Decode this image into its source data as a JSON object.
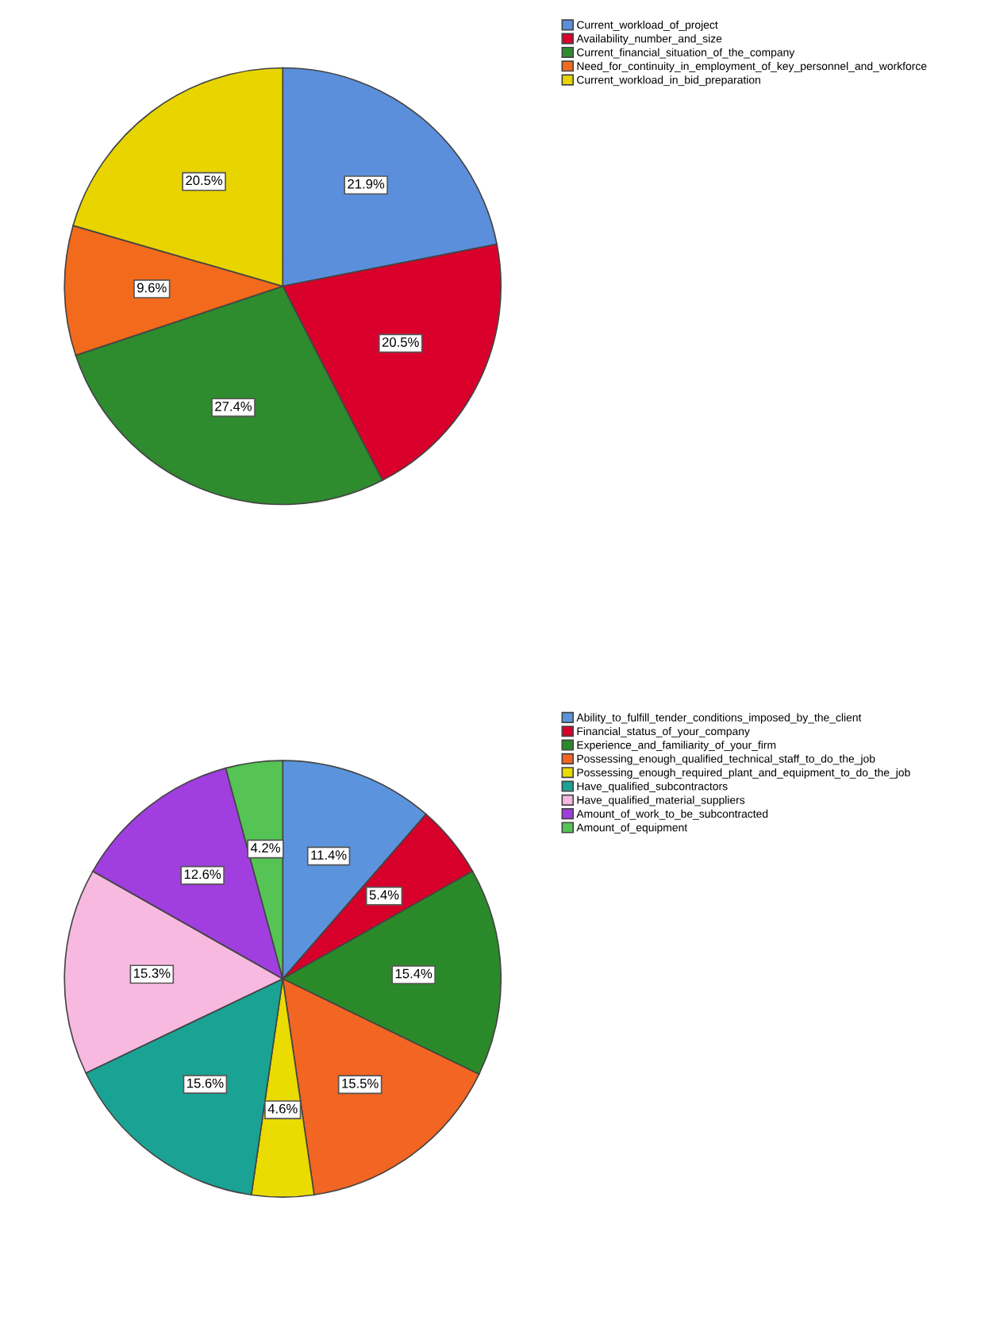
{
  "chart_data": [
    {
      "type": "pie",
      "categories": [
        "Current_workload_of_project",
        "Availability_number_and_size",
        "Current_financial_situation_of_the_company",
        "Need_for_continuity_in_employment_of_key_personnel_and_workforce",
        "Current_workload_in_bid_preparation"
      ],
      "values": [
        21.9,
        20.5,
        27.4,
        9.6,
        20.5
      ],
      "colors": [
        "#5b8fdc",
        "#d9002b",
        "#2e8b2e",
        "#f26a1b",
        "#e8d500"
      ],
      "value_labels": [
        "21.9%",
        "20.5%",
        "27.4%",
        "9.6%",
        "20.5%"
      ],
      "legend": "top right"
    },
    {
      "type": "pie",
      "categories": [
        "Ability_to_fulfill_tender_conditions_imposed_by_the_client",
        "Financial_status_of_your_company",
        "Experience_and_familiarity_of_your_firm",
        "Possessing_enough_qualified_technical_staff_to_do_the_job",
        "Possessing_enough_required_plant_and_equipment_to_do_the_job",
        "Have_qualified_subcontractors",
        "Have_qualified_material_suppliers",
        "Amount_of_work_to_be_subcontracted",
        "Amount_of_equipment"
      ],
      "values": [
        11.4,
        5.4,
        15.4,
        15.5,
        4.6,
        15.6,
        15.3,
        12.6,
        4.2
      ],
      "colors": [
        "#5b94dd",
        "#d6002a",
        "#2a8a2a",
        "#f26522",
        "#eadb00",
        "#1aa394",
        "#f7b9e0",
        "#a03ee0",
        "#55c455"
      ],
      "value_labels": [
        "11.4%",
        "5.4%",
        "15.4%",
        "15.5%",
        "4.6%",
        "15.6%",
        "15.3%",
        "12.6%",
        "4.2%"
      ],
      "legend": "top right"
    }
  ]
}
